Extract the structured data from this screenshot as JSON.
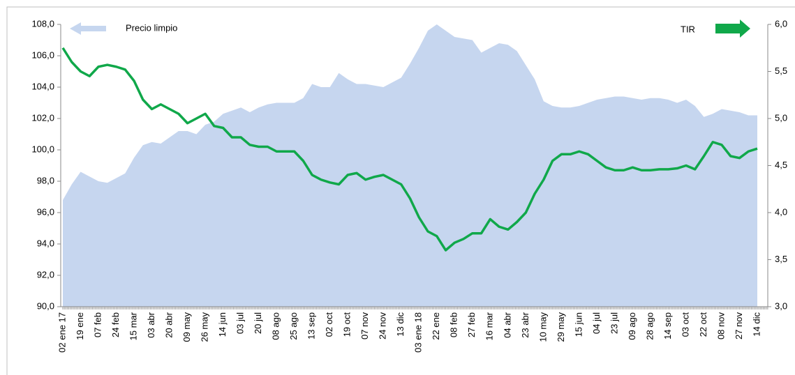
{
  "chart_data": {
    "type": "area",
    "categories": [
      "02 ene 17",
      null,
      "19 ene",
      null,
      "07 feb",
      null,
      "24 feb",
      null,
      "15 mar",
      null,
      "03 abr",
      null,
      "20 abr",
      null,
      "09 may",
      null,
      "26 may",
      null,
      "14 jun",
      null,
      "03 jul",
      null,
      "20 jul",
      null,
      "08 ago",
      null,
      "25 ago",
      null,
      "13 sep",
      null,
      "02 oct",
      null,
      "19 oct",
      null,
      "07 nov",
      null,
      "24 nov",
      null,
      "13 dic",
      null,
      "03 ene 18",
      null,
      "22 ene",
      null,
      "08 feb",
      null,
      "27 feb",
      null,
      "16 mar",
      null,
      "04 abr",
      null,
      "23 abr",
      null,
      "10 may",
      null,
      "29 may",
      null,
      "15 jun",
      null,
      "04 jul",
      null,
      "23 jul",
      null,
      "09 ago",
      null,
      "28 ago",
      null,
      "14 sep",
      null,
      "03 oct",
      null,
      "22 oct",
      null,
      "08 nov",
      null,
      "27 nov",
      null,
      "14 dic"
    ],
    "series": [
      {
        "name": "Precio limpio",
        "type": "area",
        "axis": "y",
        "color": "#c6d6ef",
        "values": [
          96.8,
          97.8,
          98.6,
          98.3,
          98.0,
          97.9,
          98.2,
          98.5,
          99.5,
          100.3,
          100.5,
          100.4,
          100.8,
          101.2,
          101.2,
          101.0,
          101.6,
          101.8,
          102.3,
          102.5,
          102.7,
          102.4,
          102.7,
          102.9,
          103.0,
          103.0,
          103.0,
          103.3,
          104.2,
          104.0,
          104.0,
          104.9,
          104.5,
          104.2,
          104.2,
          104.1,
          104.0,
          104.3,
          104.6,
          105.5,
          106.5,
          107.6,
          108.0,
          107.6,
          107.2,
          107.1,
          107.0,
          106.2,
          106.5,
          106.8,
          106.7,
          106.3,
          105.4,
          104.5,
          103.1,
          102.8,
          102.7,
          102.7,
          102.8,
          103.0,
          103.2,
          103.3,
          103.4,
          103.4,
          103.3,
          103.2,
          103.3,
          103.3,
          103.2,
          103.0,
          103.2,
          102.8,
          102.1,
          102.3,
          102.6,
          102.5,
          102.4,
          102.2,
          102.2
        ]
      },
      {
        "name": "TIR",
        "type": "line",
        "axis": "y2",
        "color": "#10a84a",
        "values": [
          5.75,
          5.6,
          5.5,
          5.45,
          5.55,
          5.57,
          5.55,
          5.52,
          5.4,
          5.2,
          5.1,
          5.15,
          5.1,
          5.05,
          4.95,
          5.0,
          5.05,
          4.92,
          4.9,
          4.8,
          4.8,
          4.72,
          4.7,
          4.7,
          4.65,
          4.65,
          4.65,
          4.55,
          4.4,
          4.35,
          4.32,
          4.3,
          4.4,
          4.42,
          4.35,
          4.38,
          4.4,
          4.35,
          4.3,
          4.15,
          3.95,
          3.8,
          3.75,
          3.6,
          3.68,
          3.72,
          3.78,
          3.78,
          3.93,
          3.85,
          3.82,
          3.9,
          4.0,
          4.2,
          4.35,
          4.55,
          4.62,
          4.62,
          4.65,
          4.62,
          4.55,
          4.48,
          4.45,
          4.45,
          4.48,
          4.45,
          4.45,
          4.46,
          4.46,
          4.47,
          4.5,
          4.46,
          4.6,
          4.75,
          4.72,
          4.6,
          4.58,
          4.65,
          4.68
        ]
      }
    ],
    "ylim": [
      90,
      108
    ],
    "yticks": [
      {
        "value": 90,
        "label": "90,0"
      },
      {
        "value": 92,
        "label": "92,0"
      },
      {
        "value": 94,
        "label": "94,0"
      },
      {
        "value": 96,
        "label": "96,0"
      },
      {
        "value": 98,
        "label": "98,0"
      },
      {
        "value": 100,
        "label": "100,0"
      },
      {
        "value": 102,
        "label": "102,0"
      },
      {
        "value": 104,
        "label": "104,0"
      },
      {
        "value": 106,
        "label": "106,0"
      },
      {
        "value": 108,
        "label": "108,0"
      }
    ],
    "y2lim": [
      3,
      6
    ],
    "y2ticks": [
      {
        "value": 3,
        "label": "3,0"
      },
      {
        "value": 3.5,
        "label": "3,5"
      },
      {
        "value": 4,
        "label": "4,0"
      },
      {
        "value": 4.5,
        "label": "4,5"
      },
      {
        "value": 5,
        "label": "5,0"
      },
      {
        "value": 5.5,
        "label": "5,5"
      },
      {
        "value": 6,
        "label": "6,0"
      }
    ]
  }
}
